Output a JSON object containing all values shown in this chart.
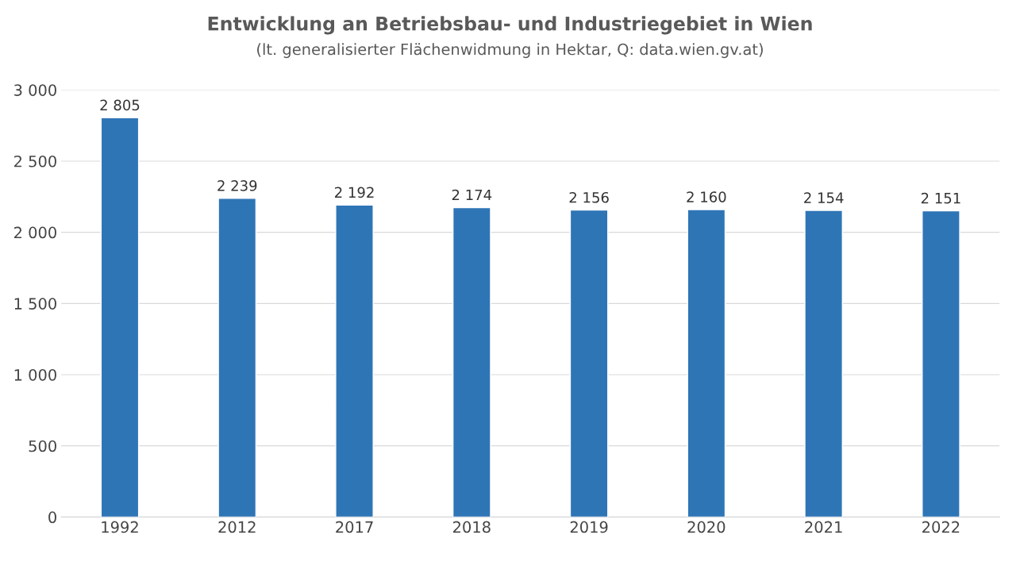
{
  "chart_data": {
    "type": "bar",
    "title": "Entwicklung an Betriebsbau- und Industriegebiet in Wien",
    "subtitle": "(lt. generalisierter Flächenwidmung in Hektar, Q: data.wien.gv.at)",
    "categories": [
      "1992",
      "2012",
      "2017",
      "2018",
      "2019",
      "2020",
      "2021",
      "2022"
    ],
    "values": [
      2805,
      2239,
      2192,
      2174,
      2156,
      2160,
      2154,
      2151
    ],
    "value_labels": [
      "2 805",
      "2 239",
      "2 192",
      "2 174",
      "2 156",
      "2 160",
      "2 154",
      "2 151"
    ],
    "color": "#2e75b6",
    "ylim": [
      0,
      3000
    ],
    "yticks": [
      0,
      500,
      {
        "value": 1000,
        "label": "1 000"
      },
      {
        "value": 1500,
        "label": "1 500"
      },
      {
        "value": 2000,
        "label": "2 000"
      },
      {
        "value": 2500,
        "label": "2 500"
      },
      {
        "value": 3000,
        "label": "3 000"
      }
    ],
    "grid": "y"
  }
}
